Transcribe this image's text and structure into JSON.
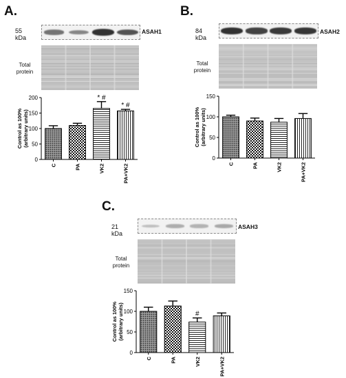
{
  "panels": [
    {
      "id": "A",
      "label": "A.",
      "kda": "55 kDa",
      "gene": "ASAH1",
      "total_protein": [
        "Total",
        "protein"
      ],
      "band_intensity": [
        0.55,
        0.45,
        0.95,
        0.75
      ]
    },
    {
      "id": "B",
      "label": "B.",
      "kda": "84 kDa",
      "gene": "ASAH2",
      "total_protein": [
        "Total",
        "protein"
      ],
      "band_intensity": [
        0.95,
        0.85,
        0.9,
        0.92
      ]
    },
    {
      "id": "C",
      "label": "C.",
      "kda": "21 kDa",
      "gene": "ASAH3",
      "total_protein": [
        "Total",
        "protein"
      ],
      "band_intensity": [
        0.12,
        0.22,
        0.18,
        0.25
      ]
    }
  ],
  "chart_data": [
    {
      "type": "bar",
      "panel": "A",
      "categories": [
        "C",
        "PA",
        "VK2",
        "PA+VK2"
      ],
      "values": [
        100,
        110,
        165,
        157
      ],
      "errors": [
        9,
        7,
        22,
        5
      ],
      "annotations": [
        "",
        "",
        "* #",
        "* #"
      ],
      "ylabel": [
        "Control as 100%",
        "(arbitrary units)"
      ],
      "ylim": [
        0,
        200
      ],
      "yticks": [
        0,
        50,
        100,
        150,
        200
      ],
      "patterns": [
        "dots",
        "checker",
        "hlines",
        "vlines"
      ],
      "grid": false
    },
    {
      "type": "bar",
      "panel": "B",
      "categories": [
        "C",
        "PA",
        "VK2",
        "PA+VK2"
      ],
      "values": [
        100,
        90,
        87,
        96
      ],
      "errors": [
        4,
        7,
        9,
        12
      ],
      "annotations": [
        "",
        "",
        "",
        ""
      ],
      "ylabel": [
        "Control as 100%",
        "(arbitrary units)"
      ],
      "ylim": [
        0,
        150
      ],
      "yticks": [
        0,
        50,
        100,
        150
      ],
      "patterns": [
        "dots",
        "checker",
        "hlines",
        "vlines"
      ],
      "grid": false
    },
    {
      "type": "bar",
      "panel": "C",
      "categories": [
        "C",
        "PA",
        "VK2",
        "PA+VK2"
      ],
      "values": [
        100,
        113,
        74,
        89
      ],
      "errors": [
        10,
        12,
        10,
        7
      ],
      "annotations": [
        "",
        "",
        "#",
        ""
      ],
      "ylabel": [
        "Control as 100%",
        "(arbitrary units)"
      ],
      "ylim": [
        0,
        150
      ],
      "yticks": [
        0,
        50,
        100,
        150
      ],
      "patterns": [
        "dots",
        "checker",
        "hlines",
        "vlines"
      ],
      "grid": false
    }
  ]
}
